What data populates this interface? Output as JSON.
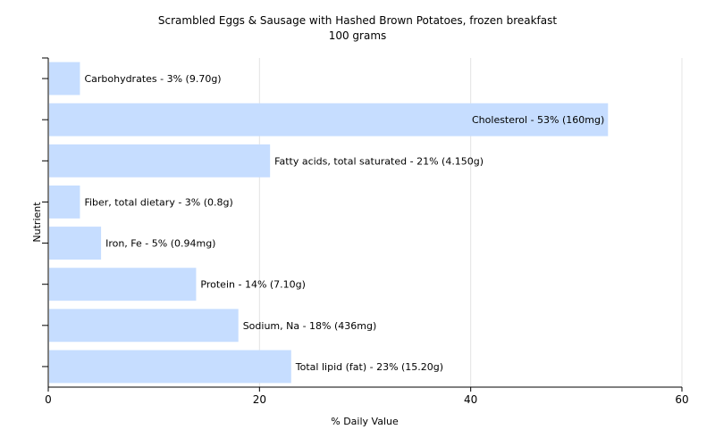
{
  "chart_data": {
    "type": "bar",
    "orientation": "horizontal",
    "title": "Scrambled Eggs & Sausage with Hashed Brown Potatoes, frozen breakfast",
    "subtitle": "100 grams",
    "xlabel": "% Daily Value",
    "ylabel": "Nutrient",
    "xlim": [
      0,
      60
    ],
    "xticks": [
      "0",
      "20",
      "40",
      "60"
    ],
    "grid": "vertical",
    "bar_color": "#c6ddff",
    "categories": [
      "Carbohydrates",
      "Cholesterol",
      "Fatty acids, total saturated",
      "Fiber, total dietary",
      "Iron, Fe",
      "Protein",
      "Sodium, Na",
      "Total lipid (fat)"
    ],
    "values": [
      3,
      53,
      21,
      3,
      5,
      14,
      18,
      23
    ],
    "labels": [
      "Carbohydrates - 3% (9.70g)",
      "Cholesterol - 53% (160mg)",
      "Fatty acids, total saturated - 21% (4.150g)",
      "Fiber, total dietary - 3% (0.8g)",
      "Iron, Fe - 5% (0.94mg)",
      "Protein - 14% (7.10g)",
      "Sodium, Na - 18% (436mg)",
      "Total lipid (fat) - 23% (15.20g)"
    ]
  }
}
